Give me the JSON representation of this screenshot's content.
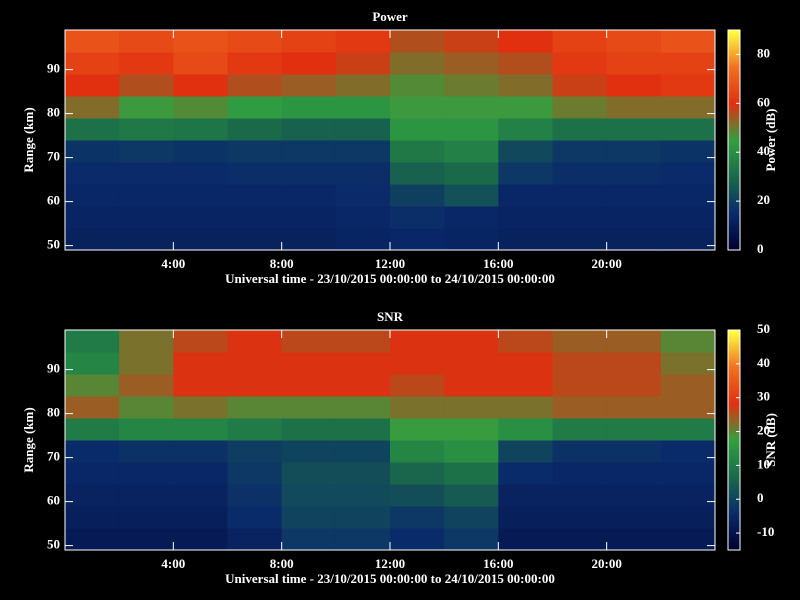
{
  "chart_data": [
    {
      "type": "heatmap",
      "title": "Power",
      "xlabel": "Universal time - 23/10/2015 00:00:00 to 24/10/2015 00:00:00",
      "ylabel": "Range (km)",
      "colorbar_label": "Power (dB)",
      "x_edges": [
        0,
        2,
        4,
        6,
        8,
        10,
        12,
        14,
        16,
        18,
        20,
        22,
        24
      ],
      "y_edges": [
        49,
        54,
        59,
        64,
        69,
        74,
        79,
        84,
        89,
        94,
        99
      ],
      "xlim": [
        0,
        24
      ],
      "ylim": [
        49,
        99
      ],
      "xticks": [
        {
          "value": 4,
          "label": "4:00"
        },
        {
          "value": 8,
          "label": "8:00"
        },
        {
          "value": 12,
          "label": "12:00"
        },
        {
          "value": 16,
          "label": "16:00"
        },
        {
          "value": 20,
          "label": "20:00"
        }
      ],
      "yticks": [
        50,
        60,
        70,
        80,
        90
      ],
      "clim": [
        0,
        90
      ],
      "cticks": [
        0,
        20,
        40,
        60,
        80
      ],
      "colormap": [
        "#000030",
        "#0a2a6a",
        "#1a6a4a",
        "#30a040",
        "#e03010",
        "#f07020",
        "#ffff40"
      ],
      "z": [
        [
          12,
          12,
          12,
          12,
          12,
          13,
          14,
          13,
          12,
          12,
          12,
          12
        ],
        [
          13,
          13,
          13,
          13,
          13,
          14,
          16,
          14,
          13,
          13,
          13,
          13
        ],
        [
          14,
          14,
          14,
          14,
          14,
          15,
          20,
          24,
          14,
          14,
          14,
          14
        ],
        [
          15,
          15,
          15,
          16,
          16,
          16,
          28,
          30,
          18,
          16,
          16,
          15
        ],
        [
          17,
          18,
          17,
          18,
          18,
          18,
          34,
          36,
          22,
          18,
          18,
          17
        ],
        [
          32,
          34,
          33,
          30,
          28,
          28,
          42,
          42,
          36,
          32,
          32,
          32
        ],
        [
          52,
          46,
          48,
          44,
          42,
          42,
          46,
          46,
          46,
          50,
          52,
          52
        ],
        [
          60,
          56,
          60,
          56,
          54,
          52,
          48,
          50,
          52,
          58,
          60,
          62
        ],
        [
          64,
          62,
          66,
          62,
          60,
          58,
          52,
          54,
          56,
          62,
          64,
          64
        ],
        [
          68,
          66,
          68,
          66,
          64,
          62,
          56,
          58,
          60,
          64,
          66,
          68
        ]
      ]
    },
    {
      "type": "heatmap",
      "title": "SNR",
      "xlabel": "Universal time - 23/10/2015 00:00:00 to 24/10/2015 00:00:00",
      "ylabel": "Range (km)",
      "colorbar_label": "SNR (dB)",
      "x_edges": [
        0,
        2,
        4,
        6,
        8,
        10,
        12,
        14,
        16,
        18,
        20,
        22,
        24
      ],
      "y_edges": [
        49,
        54,
        59,
        64,
        69,
        74,
        79,
        84,
        89,
        94,
        99
      ],
      "xlim": [
        0,
        24
      ],
      "ylim": [
        49,
        99
      ],
      "xticks": [
        {
          "value": 4,
          "label": "4:00"
        },
        {
          "value": 8,
          "label": "8:00"
        },
        {
          "value": 12,
          "label": "12:00"
        },
        {
          "value": 16,
          "label": "16:00"
        },
        {
          "value": 20,
          "label": "20:00"
        }
      ],
      "yticks": [
        50,
        60,
        70,
        80,
        90
      ],
      "clim": [
        -15,
        50
      ],
      "cticks": [
        -10,
        0,
        10,
        20,
        30,
        40,
        50
      ],
      "colormap": [
        "#000030",
        "#0a2a6a",
        "#1a6a4a",
        "#30a040",
        "#e03010",
        "#f07020",
        "#ffff40"
      ],
      "z": [
        [
          -8,
          -8,
          -8,
          -6,
          -2,
          -2,
          -4,
          -2,
          -8,
          -8,
          -8,
          -8
        ],
        [
          -7,
          -7,
          -7,
          -4,
          0,
          0,
          -2,
          0,
          -7,
          -7,
          -7,
          -7
        ],
        [
          -6,
          -6,
          -6,
          -3,
          1,
          1,
          2,
          4,
          -6,
          -6,
          -6,
          -6
        ],
        [
          -5,
          -5,
          -5,
          -2,
          2,
          2,
          6,
          8,
          -4,
          -5,
          -5,
          -5
        ],
        [
          -4,
          -3,
          -3,
          -1,
          0,
          0,
          12,
          14,
          0,
          -3,
          -3,
          -4
        ],
        [
          10,
          12,
          12,
          10,
          8,
          8,
          18,
          18,
          14,
          10,
          10,
          10
        ],
        [
          24,
          20,
          22,
          20,
          20,
          20,
          22,
          22,
          22,
          24,
          24,
          24
        ],
        [
          20,
          24,
          28,
          28,
          28,
          28,
          26,
          28,
          28,
          26,
          26,
          24
        ],
        [
          12,
          22,
          28,
          28,
          28,
          28,
          28,
          28,
          28,
          26,
          26,
          22
        ],
        [
          10,
          22,
          26,
          28,
          26,
          26,
          28,
          28,
          26,
          24,
          24,
          20
        ]
      ]
    }
  ]
}
